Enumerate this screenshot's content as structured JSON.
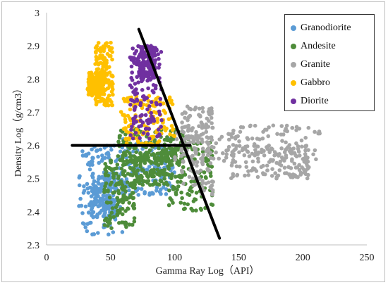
{
  "chart_data": {
    "type": "scatter",
    "xlabel": "Gamma Ray Log（API）",
    "ylabel": "Density Log（g/cm3）",
    "xlim": [
      0,
      250
    ],
    "ylim": [
      2.3,
      3.0
    ],
    "x_ticks": [
      "0",
      "50",
      "100",
      "150",
      "200",
      "250"
    ],
    "y_ticks": [
      "2.3",
      "2.4",
      "2.5",
      "2.6",
      "2.7",
      "2.8",
      "2.9",
      "3"
    ],
    "grid": false,
    "legend_position": "top-right",
    "series": [
      {
        "name": "Granodiorite",
        "color": "#5b9bd5",
        "clusters": [
          {
            "x": [
              25,
              60
            ],
            "y": [
              2.33,
              2.6
            ]
          },
          {
            "x": [
              58,
              100
            ],
            "y": [
              2.45,
              2.62
            ]
          },
          {
            "x": [
              35,
              55
            ],
            "y": [
              2.38,
              2.52
            ]
          }
        ]
      },
      {
        "name": "Andesite",
        "color": "#4e8c3a",
        "clusters": [
          {
            "x": [
              45,
              70
            ],
            "y": [
              2.35,
              2.56
            ]
          },
          {
            "x": [
              55,
              110
            ],
            "y": [
              2.55,
              2.65
            ]
          },
          {
            "x": [
              65,
              95
            ],
            "y": [
              2.48,
              2.58
            ]
          },
          {
            "x": [
              95,
              130
            ],
            "y": [
              2.4,
              2.62
            ]
          }
        ]
      },
      {
        "name": "Granite",
        "color": "#a6a6a6",
        "clusters": [
          {
            "x": [
              100,
              215
            ],
            "y": [
              2.55,
              2.66
            ]
          },
          {
            "x": [
              140,
              205
            ],
            "y": [
              2.5,
              2.6
            ]
          },
          {
            "x": [
              105,
              130
            ],
            "y": [
              2.45,
              2.72
            ]
          }
        ]
      },
      {
        "name": "Gabbro",
        "color": "#ffc000",
        "clusters": [
          {
            "x": [
              38,
              52
            ],
            "y": [
              2.72,
              2.91
            ]
          },
          {
            "x": [
              58,
              100
            ],
            "y": [
              2.6,
              2.75
            ]
          },
          {
            "x": [
              32,
              45
            ],
            "y": [
              2.75,
              2.82
            ]
          }
        ]
      },
      {
        "name": "Diorite",
        "color": "#7030a0",
        "clusters": [
          {
            "x": [
              65,
              90
            ],
            "y": [
              2.62,
              2.9
            ]
          },
          {
            "x": [
              72,
              85
            ],
            "y": [
              2.8,
              2.9
            ]
          }
        ]
      }
    ],
    "annotation_lines": [
      {
        "x": [
          20,
          112
        ],
        "y": [
          2.6,
          2.6
        ],
        "color": "#000000"
      },
      {
        "x": [
          72,
          135
        ],
        "y": [
          2.95,
          2.32
        ],
        "color": "#000000"
      }
    ]
  }
}
